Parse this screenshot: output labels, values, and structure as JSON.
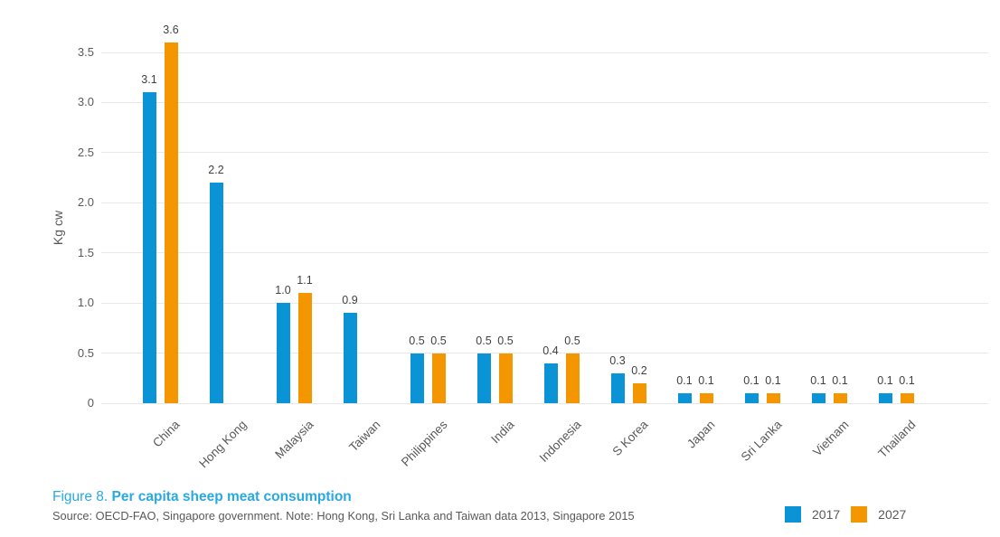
{
  "figure": {
    "caption_label": "Figure 8.",
    "caption_title": "Per capita sheep meat consumption",
    "source_note": "Source: OECD-FAO, Singapore government. Note: Hong Kong, Sri Lanka and Taiwan data 2013, Singapore 2015"
  },
  "legend": {
    "items": [
      {
        "label": "2017",
        "color": "#0a93d5"
      },
      {
        "label": "2027",
        "color": "#f49600"
      }
    ]
  },
  "colors": {
    "series_2017": "#0a93d5",
    "series_2027": "#f49600",
    "gridline": "#e8e8e8",
    "tick_text": "#595a5c",
    "value_label_text": "#414042",
    "caption_accent": "#29a9e1",
    "source_text": "#58595b"
  },
  "chart_data": {
    "type": "bar",
    "categories": [
      "China",
      "Hong Kong",
      "Malaysia",
      "Taiwan",
      "Philippines",
      "India",
      "Indonesia",
      "S Korea",
      "Japan",
      "Sri Lanka",
      "Vietnam",
      "Thailand"
    ],
    "series": [
      {
        "name": "2017",
        "color": "#0a93d5",
        "values": [
          3.1,
          2.2,
          1.0,
          0.9,
          0.5,
          0.5,
          0.4,
          0.3,
          0.1,
          0.1,
          0.1,
          0.1
        ]
      },
      {
        "name": "2027",
        "color": "#f49600",
        "values": [
          3.6,
          null,
          1.1,
          null,
          0.5,
          0.5,
          0.5,
          0.2,
          0.1,
          0.1,
          0.1,
          0.1
        ]
      }
    ],
    "title": "Figure 8. Per capita sheep meat consumption",
    "xlabel": "",
    "ylabel": "Kg cw",
    "ylim": [
      0,
      3.5
    ],
    "yticks": [
      0,
      0.5,
      1.0,
      1.5,
      2.0,
      2.5,
      3.0,
      3.5
    ],
    "grid": true,
    "value_labels": true,
    "value_label_format": "one_decimal",
    "legend_position": "bottom-right"
  }
}
